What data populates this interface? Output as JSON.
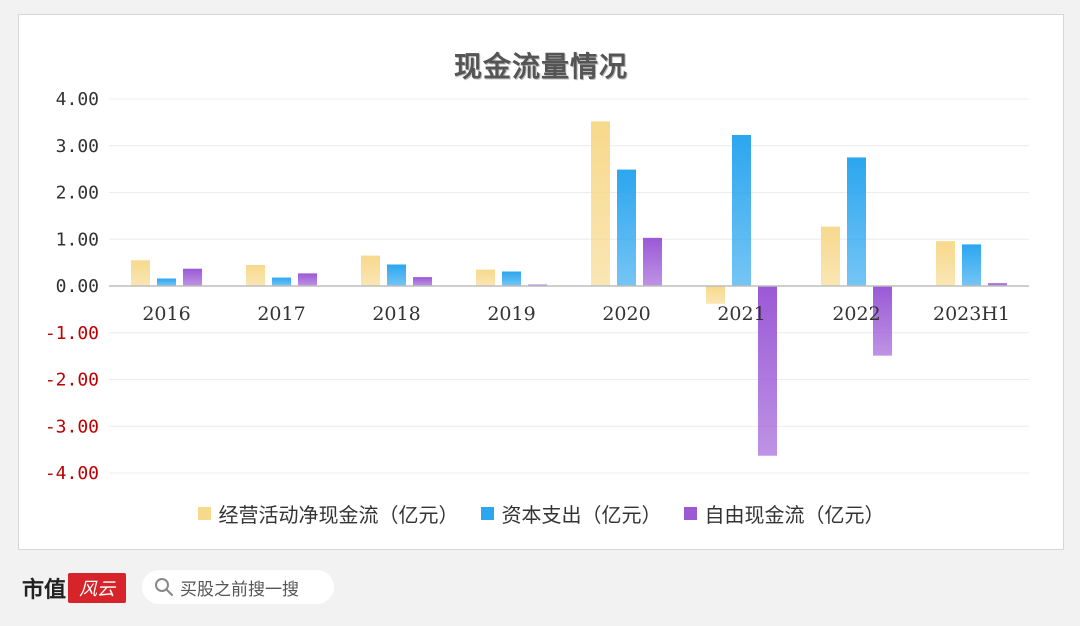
{
  "chart_data": {
    "type": "bar",
    "title": "现金流量情况",
    "categories": [
      "2016",
      "2017",
      "2018",
      "2019",
      "2020",
      "2021",
      "2022",
      "2023H1"
    ],
    "series": [
      {
        "name": "经营活动净现金流（亿元）",
        "color": "#f7d98c",
        "values": [
          0.55,
          0.45,
          0.65,
          0.35,
          3.52,
          -0.38,
          1.27,
          0.96
        ]
      },
      {
        "name": "资本支出（亿元）",
        "color": "#2ba6ef",
        "values": [
          0.16,
          0.18,
          0.46,
          0.31,
          2.49,
          3.23,
          2.75,
          0.89
        ]
      },
      {
        "name": "自由现金流（亿元）",
        "color": "#9b59d6",
        "values": [
          0.37,
          0.27,
          0.19,
          0.03,
          1.03,
          -3.63,
          -1.49,
          0.06
        ]
      }
    ],
    "ylim": [
      -4,
      4
    ],
    "y_ticks": [
      4,
      3,
      2,
      1,
      0,
      -1,
      -2,
      -3,
      -4
    ],
    "y_tick_labels": [
      "4.00",
      "3.00",
      "2.00",
      "1.00",
      "0.00",
      "-1.00",
      "-2.00",
      "-3.00",
      "-4.00"
    ],
    "negative_tick_color": "#c00000",
    "grid": true,
    "legend_position": "bottom"
  },
  "footer": {
    "brand": "市值",
    "brand_logo": "风云",
    "search_placeholder": "买股之前搜一搜"
  }
}
